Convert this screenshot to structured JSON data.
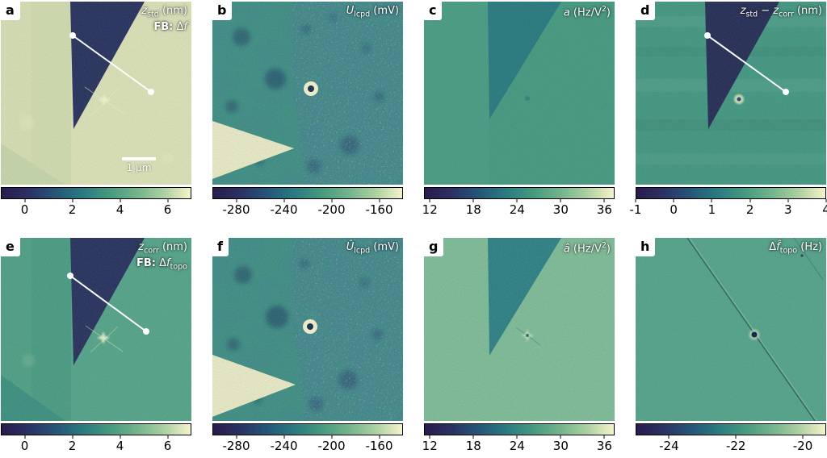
{
  "figure": {
    "background": "#ffffff",
    "colormap_stops": [
      "#2a1a4d",
      "#2b3263",
      "#265578",
      "#2a7a80",
      "#45997f",
      "#72b38b",
      "#abd0a1",
      "#f5f3ca"
    ]
  },
  "panels": {
    "a": {
      "label": "a",
      "title_html": "<i>z</i><sub>std</sub> (nm)",
      "subtitle_html": "<b>FB:</b> &Delta;<i>f</i>",
      "scalebar": "1 μm",
      "colorbar": {
        "min": -1,
        "max": 7,
        "ticks": [
          0,
          2,
          4,
          6
        ]
      }
    },
    "b": {
      "label": "b",
      "title_html": "<i>U</i><sub>lcpd</sub> (mV)",
      "colorbar": {
        "min": -300,
        "max": -140,
        "ticks": [
          -280,
          -240,
          -200,
          -160
        ]
      }
    },
    "c": {
      "label": "c",
      "title_html": "<i>a</i> (Hz/V<sup>2</sup>)",
      "colorbar": {
        "min": 11.2,
        "max": 37.4,
        "ticks": [
          12,
          18,
          24,
          30,
          36
        ]
      }
    },
    "d": {
      "label": "d",
      "title_html": "<i>z</i><sub>std</sub> − <i>z</i><sub>corr</sub> (nm)",
      "colorbar": {
        "min": -1,
        "max": 4,
        "ticks": [
          -1,
          0,
          1,
          2,
          3,
          4
        ]
      }
    },
    "e": {
      "label": "e",
      "title_html": "<i>z</i><sub>corr</sub> (nm)",
      "subtitle_html": "<b>FB:</b> &Delta;<i>f</i><sub>topo</sub>",
      "colorbar": {
        "min": -1,
        "max": 7,
        "ticks": [
          0,
          2,
          4,
          6
        ]
      }
    },
    "f": {
      "label": "f",
      "title_html": "<i>&Ucirc;</i><sub>lcpd</sub> (mV)",
      "colorbar": {
        "min": -300,
        "max": -140,
        "ticks": [
          -280,
          -240,
          -200,
          -160
        ]
      }
    },
    "g": {
      "label": "g",
      "title_html": "<i>&acirc;</i> (Hz/V<sup>2</sup>)",
      "colorbar": {
        "min": 11.2,
        "max": 37.4,
        "ticks": [
          12,
          18,
          24,
          30,
          36
        ]
      }
    },
    "h": {
      "label": "h",
      "title_html": "&Delta;<i>f&#770;</i><sub>topo</sub> (Hz)",
      "colorbar": {
        "min": -25,
        "max": -19.3,
        "ticks": [
          -24,
          -22,
          -20
        ]
      }
    }
  }
}
